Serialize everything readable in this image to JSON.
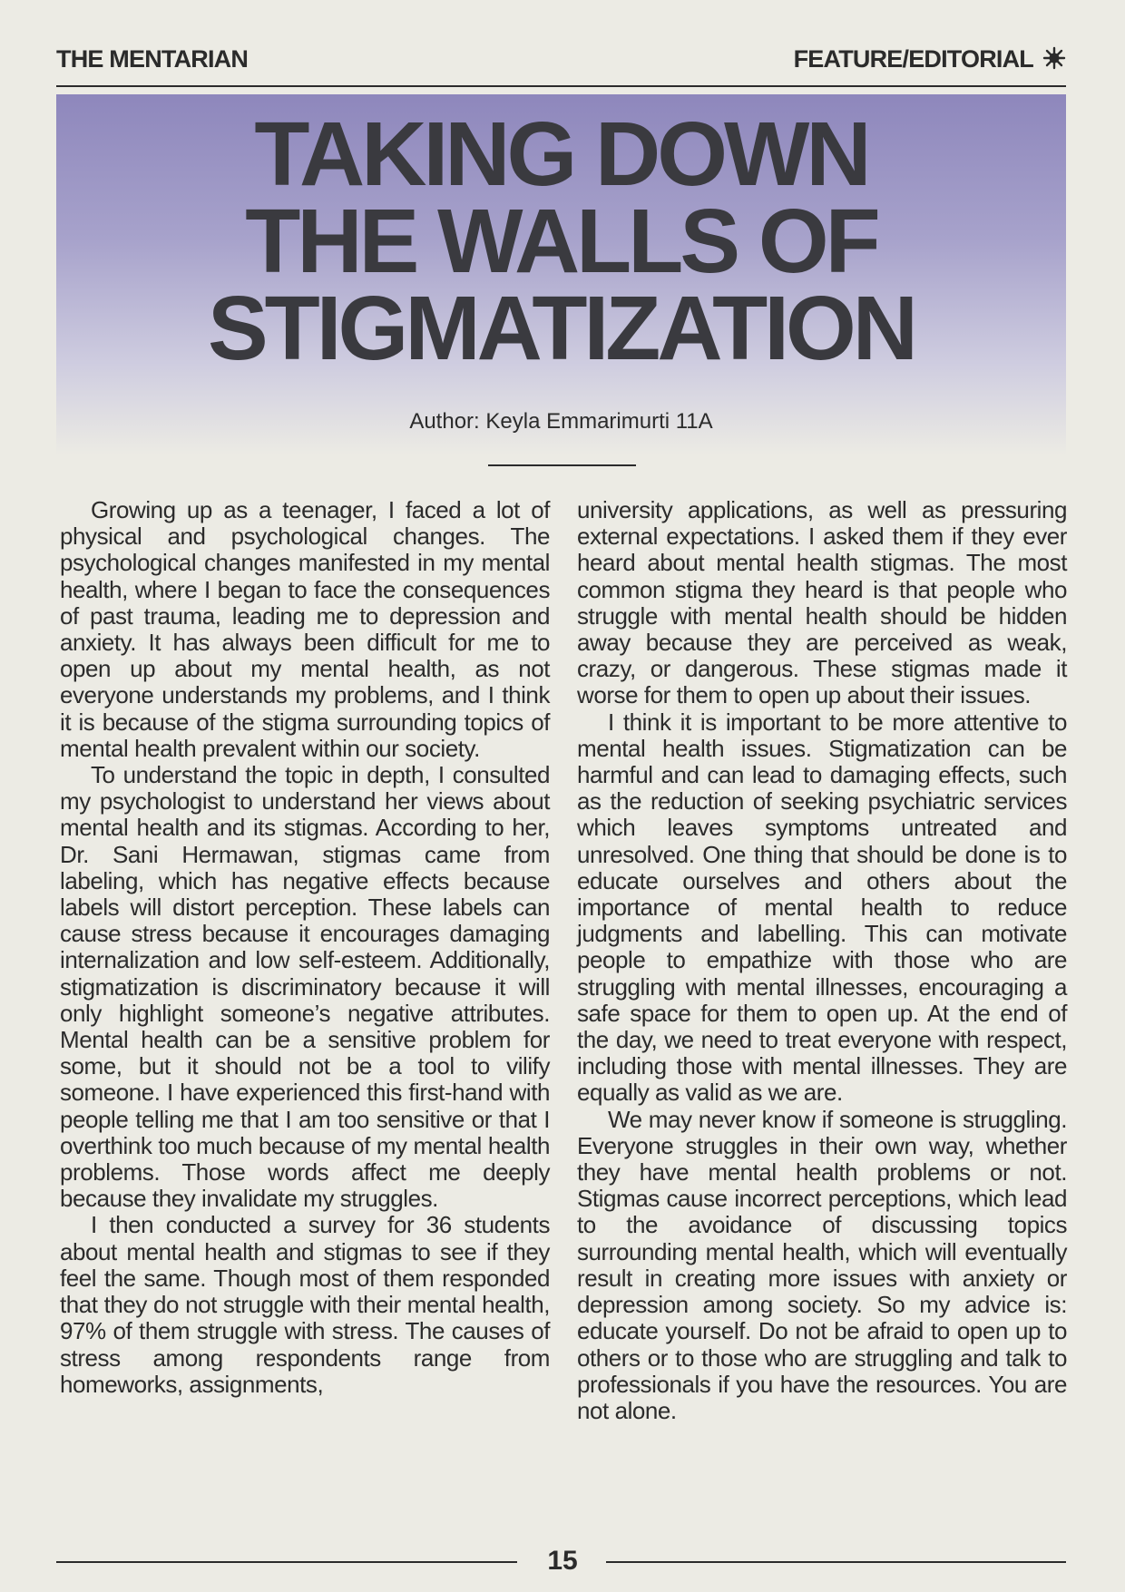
{
  "header": {
    "publication": "THE MENTARIAN",
    "section": "FEATURE/EDITORIAL",
    "section_icon": "sun-star-icon"
  },
  "article": {
    "title_lines": [
      "TAKING DOWN",
      "THE WALLS OF",
      "STIGMATIZATION"
    ],
    "author": "Author: Keyla Emmarimurti 11A",
    "left_column": [
      "Growing up as a teenager, I faced a lot of physical and psychological changes. The psychological changes manifested in my mental health, where I began to face the consequences of past trauma, leading me to depression and anxiety. It has always been difficult for me to open up about my mental health, as not everyone understands my problems, and I think it is because of the stigma surrounding topics of mental health prevalent within our society.",
      "To understand the topic in depth, I consult­ed my psychologist to understand her views about mental health and its stigmas. Ac­cording to her, Dr. Sani Hermawan, stigmas came from labeling, which has negative ef­fects because labels will distort perception. These labels can cause stress because it en­courages damaging internalization and low self-esteem. Additionally, stigmatization is discriminatory because it will only highlight someone’s negative attributes. Mental health can be a sensitive problem for some, but it should not be a tool to vilify someone. I have experienced this first-hand with people telling me that I am too sensitive or that I overthink too much because of my mental health problems. Those words affect me deeply because they invalidate my strug­gles.",
      "I then conducted a survey for 36 students about mental health and stigmas to see if they feel the same. Though most of them re­sponded that they do not struggle with their mental health, 97% of them struggle with stress. The causes of stress among respon­dents range from homeworks, assignments,"
    ],
    "right_column_continuation": "university applications, as well as pressuring external expectations. I asked them if they ever heard about mental health stigmas. The most common stigma they heard is that people who struggle with mental health should be hidden away because they are perceived as weak, crazy, or dangerous. These stigmas made it worse for them to open up about their issues.",
    "right_column": [
      "I think it is important to be more attentive to mental health issues. Stigmatization can be harmful and can lead to damaging effects, such as the reduction of seeking psychiatric services which leaves symptoms untreated and unresolved. One thing that should be done is to educate ourselves and others about the importance of mental health to reduce judgments and labelling. This can motivate people to empathize with those who are struggling with mental illnesses, en­couraging a safe space for them to open up. At the end of the day, we need to treat every­one with respect, including those with mental illnesses. They are equally as valid as we are.",
      "We may never know if someone is strug­gling. Everyone struggles in their own way, whether they have mental health problems or not. Stigmas cause incorrect perceptions, which lead to the avoidance of discussing topics surrounding mental health, which will eventually result in creating more issues with anxiety or depression among society. So my advice is: educate yourself. Do not be afraid to open up to others or to those who are struggling and talk to professionals if you have the resources. You are not alone."
    ]
  },
  "footer": {
    "page_number": "15"
  }
}
